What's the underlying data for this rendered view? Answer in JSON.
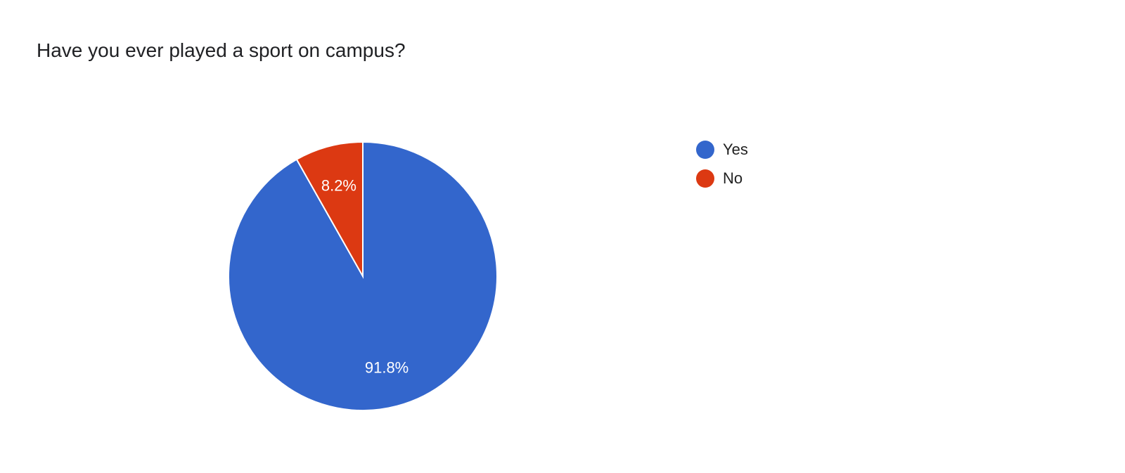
{
  "chart_data": {
    "type": "pie",
    "title": "Have you ever played a sport on campus?",
    "categories": [
      "Yes",
      "No"
    ],
    "values": [
      91.8,
      8.2
    ],
    "data_labels": [
      "91.8%",
      "8.2%"
    ],
    "colors": [
      "#3366CC",
      "#DC3912"
    ],
    "legend_position": "right"
  }
}
